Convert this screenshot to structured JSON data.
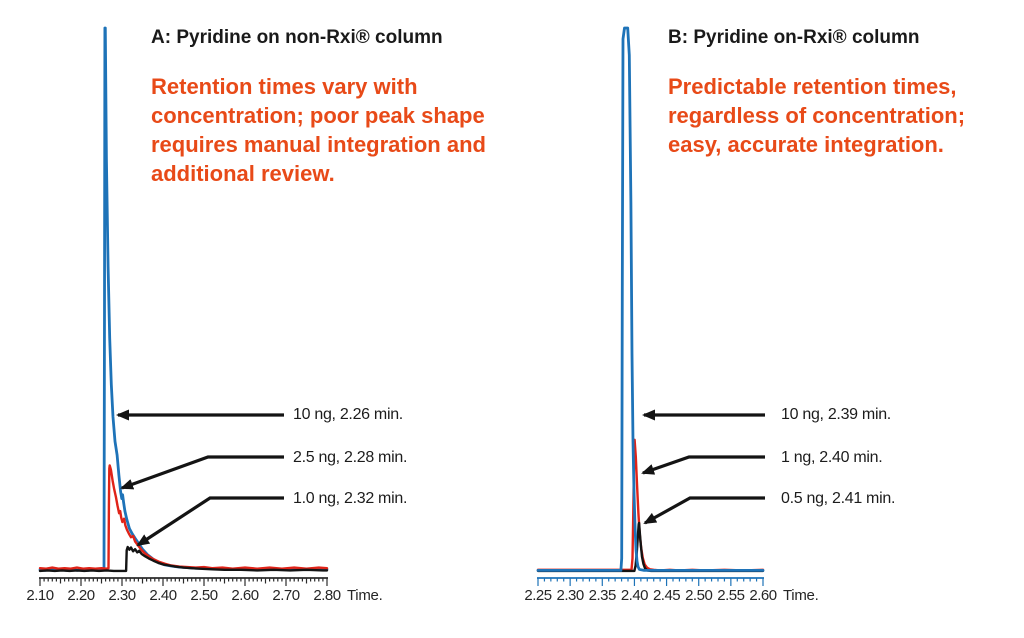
{
  "colors": {
    "blue": "#1e73b8",
    "red": "#e02318",
    "black": "#141414",
    "orange": "#e84a18",
    "axis": "#2b2b2b"
  },
  "chart_data": [
    {
      "type": "line",
      "panel": "A",
      "title": "A: Pyridine on non-Rxi® column",
      "note_lines": [
        "Retention times vary with",
        "concentration; poor peak shape",
        "requires manual integration and",
        "additional review."
      ],
      "xlabel": "Time.",
      "xlim": [
        2.1,
        2.8
      ],
      "ylim": [
        0,
        1000
      ],
      "x_major_step": 0.1,
      "x_minor_step": 0.01,
      "x_tick_labels": [
        "2.10",
        "2.20",
        "2.30",
        "2.40",
        "2.50",
        "2.60",
        "2.70",
        "2.80"
      ],
      "axis_color": "axis",
      "grid": false,
      "legend": false,
      "annotations": [
        {
          "text": "10 ng, 2.26 min.",
          "series": "10 ng",
          "retention_min": 2.26
        },
        {
          "text": "2.5 ng, 2.28 min.",
          "series": "2.5 ng",
          "retention_min": 2.28
        },
        {
          "text": "1.0 ng, 2.32 min.",
          "series": "1.0 ng",
          "retention_min": 2.32
        }
      ],
      "series": [
        {
          "name": "10 ng",
          "color": "blue",
          "retention_min": 2.26,
          "points": [
            [
              2.1,
              4
            ],
            [
              2.113,
              3
            ],
            [
              2.126,
              5
            ],
            [
              2.139,
              3
            ],
            [
              2.152,
              4
            ],
            [
              2.165,
              3
            ],
            [
              2.178,
              5
            ],
            [
              2.191,
              3
            ],
            [
              2.204,
              4
            ],
            [
              2.217,
              3
            ],
            [
              2.23,
              4
            ],
            [
              2.243,
              3
            ],
            [
              2.252,
              4
            ],
            [
              2.256,
              5
            ],
            [
              2.2572,
              480
            ],
            [
              2.2582,
              1000
            ],
            [
              2.2592,
              1000
            ],
            [
              2.262,
              760
            ],
            [
              2.266,
              560
            ],
            [
              2.27,
              430
            ],
            [
              2.274,
              345
            ],
            [
              2.278,
              285
            ],
            [
              2.283,
              240
            ],
            [
              2.288,
              215
            ],
            [
              2.2925,
              178
            ],
            [
              2.2965,
              148
            ],
            [
              2.2995,
              135
            ],
            [
              2.3015,
              142
            ],
            [
              2.304,
              128
            ],
            [
              2.307,
              112
            ],
            [
              2.312,
              96
            ],
            [
              2.318,
              80
            ],
            [
              2.325,
              70
            ],
            [
              2.332,
              62
            ],
            [
              2.34,
              53
            ],
            [
              2.35,
              42
            ],
            [
              2.362,
              32
            ],
            [
              2.375,
              24
            ],
            [
              2.39,
              17
            ],
            [
              2.405,
              13
            ],
            [
              2.42,
              11
            ],
            [
              2.44,
              9
            ],
            [
              2.46,
              8
            ],
            [
              2.48,
              7
            ],
            [
              2.5,
              7
            ],
            [
              2.525,
              6
            ],
            [
              2.55,
              6
            ],
            [
              2.575,
              5
            ],
            [
              2.6,
              6
            ],
            [
              2.63,
              5
            ],
            [
              2.66,
              6
            ],
            [
              2.69,
              5
            ],
            [
              2.72,
              6
            ],
            [
              2.75,
              5
            ],
            [
              2.78,
              6
            ],
            [
              2.8,
              5
            ]
          ]
        },
        {
          "name": "2.5 ng",
          "color": "red",
          "retention_min": 2.28,
          "points": [
            [
              2.1,
              7
            ],
            [
              2.115,
              6
            ],
            [
              2.13,
              8
            ],
            [
              2.145,
              6
            ],
            [
              2.16,
              7
            ],
            [
              2.175,
              6
            ],
            [
              2.19,
              8
            ],
            [
              2.205,
              6
            ],
            [
              2.22,
              7
            ],
            [
              2.235,
              6
            ],
            [
              2.25,
              7
            ],
            [
              2.262,
              6
            ],
            [
              2.267,
              7
            ],
            [
              2.268,
              120
            ],
            [
              2.269,
              190
            ],
            [
              2.27,
              196
            ],
            [
              2.273,
              188
            ],
            [
              2.277,
              168
            ],
            [
              2.281,
              152
            ],
            [
              2.285,
              138
            ],
            [
              2.289,
              122
            ],
            [
              2.293,
              108
            ],
            [
              2.2955,
              112
            ],
            [
              2.298,
              100
            ],
            [
              2.301,
              92
            ],
            [
              2.305,
              98
            ],
            [
              2.308,
              86
            ],
            [
              2.312,
              78
            ],
            [
              2.317,
              70
            ],
            [
              2.322,
              64
            ],
            [
              2.327,
              66
            ],
            [
              2.332,
              56
            ],
            [
              2.34,
              48
            ],
            [
              2.348,
              40
            ],
            [
              2.356,
              34
            ],
            [
              2.365,
              29
            ],
            [
              2.375,
              24
            ],
            [
              2.39,
              19
            ],
            [
              2.405,
              15
            ],
            [
              2.42,
              12
            ],
            [
              2.44,
              10
            ],
            [
              2.46,
              9
            ],
            [
              2.48,
              8
            ],
            [
              2.5,
              9
            ],
            [
              2.52,
              7
            ],
            [
              2.545,
              8
            ],
            [
              2.57,
              6
            ],
            [
              2.6,
              8
            ],
            [
              2.63,
              6
            ],
            [
              2.66,
              8
            ],
            [
              2.69,
              6
            ],
            [
              2.72,
              8
            ],
            [
              2.75,
              6
            ],
            [
              2.78,
              8
            ],
            [
              2.8,
              7
            ]
          ]
        },
        {
          "name": "1.0 ng",
          "color": "black",
          "retention_min": 2.32,
          "points": [
            [
              2.1,
              2
            ],
            [
              2.118,
              3
            ],
            [
              2.136,
              2
            ],
            [
              2.154,
              3
            ],
            [
              2.172,
              2
            ],
            [
              2.19,
              3
            ],
            [
              2.208,
              2
            ],
            [
              2.226,
              3
            ],
            [
              2.244,
              2
            ],
            [
              2.262,
              3
            ],
            [
              2.28,
              2
            ],
            [
              2.298,
              2
            ],
            [
              2.31,
              2
            ],
            [
              2.3115,
              40
            ],
            [
              2.314,
              46
            ],
            [
              2.318,
              41
            ],
            [
              2.322,
              45
            ],
            [
              2.327,
              38
            ],
            [
              2.332,
              42
            ],
            [
              2.337,
              36
            ],
            [
              2.342,
              39
            ],
            [
              2.348,
              33
            ],
            [
              2.356,
              29
            ],
            [
              2.365,
              25
            ],
            [
              2.376,
              21
            ],
            [
              2.388,
              17
            ],
            [
              2.4,
              14
            ],
            [
              2.415,
              12
            ],
            [
              2.43,
              10
            ],
            [
              2.45,
              8
            ],
            [
              2.47,
              7
            ],
            [
              2.49,
              6
            ],
            [
              2.52,
              5
            ],
            [
              2.55,
              4
            ],
            [
              2.59,
              4
            ],
            [
              2.63,
              3
            ],
            [
              2.67,
              4
            ],
            [
              2.71,
              3
            ],
            [
              2.75,
              4
            ],
            [
              2.79,
              3
            ],
            [
              2.8,
              3
            ]
          ]
        }
      ]
    },
    {
      "type": "line",
      "panel": "B",
      "title": "B: Pyridine on-Rxi® column",
      "note_lines": [
        "Predictable retention times,",
        "regardless of concentration;",
        "easy, accurate integration."
      ],
      "xlabel": "Time.",
      "xlim": [
        2.25,
        2.6
      ],
      "ylim": [
        0,
        1000
      ],
      "x_major_step": 0.05,
      "x_minor_step": 0.01,
      "x_tick_labels": [
        "2.25",
        "2.30",
        "2.35",
        "2.40",
        "2.45",
        "2.50",
        "2.55",
        "2.60"
      ],
      "axis_color": "blue",
      "grid": false,
      "legend": false,
      "annotations": [
        {
          "text": "10 ng, 2.39 min.",
          "series": "10 ng",
          "retention_min": 2.39
        },
        {
          "text": "1 ng, 2.40 min.",
          "series": "1 ng",
          "retention_min": 2.4
        },
        {
          "text": "0.5 ng, 2.41 min.",
          "series": "0.5 ng",
          "retention_min": 2.41
        }
      ],
      "series": [
        {
          "name": "10 ng",
          "color": "blue",
          "retention_min": 2.39,
          "points": [
            [
              2.25,
              3
            ],
            [
              2.265,
              3
            ],
            [
              2.28,
              3
            ],
            [
              2.295,
              3
            ],
            [
              2.31,
              3
            ],
            [
              2.325,
              3
            ],
            [
              2.34,
              3
            ],
            [
              2.355,
              3
            ],
            [
              2.37,
              3
            ],
            [
              2.379,
              3
            ],
            [
              2.3802,
              25
            ],
            [
              2.3812,
              520
            ],
            [
              2.3822,
              980
            ],
            [
              2.3845,
              1000
            ],
            [
              2.3895,
              1000
            ],
            [
              2.392,
              950
            ],
            [
              2.3945,
              680
            ],
            [
              2.3962,
              400
            ],
            [
              2.3978,
              240
            ],
            [
              2.3995,
              140
            ],
            [
              2.401,
              80
            ],
            [
              2.4025,
              42
            ],
            [
              2.404,
              20
            ],
            [
              2.4055,
              10
            ],
            [
              2.4075,
              5
            ],
            [
              2.41,
              4
            ],
            [
              2.415,
              3
            ],
            [
              2.425,
              3
            ],
            [
              2.44,
              3
            ],
            [
              2.46,
              3
            ],
            [
              2.48,
              3
            ],
            [
              2.5,
              3
            ],
            [
              2.525,
              3
            ],
            [
              2.55,
              3
            ],
            [
              2.575,
              3
            ],
            [
              2.6,
              3
            ]
          ]
        },
        {
          "name": "1 ng",
          "color": "red",
          "retention_min": 2.4,
          "points": [
            [
              2.25,
              4
            ],
            [
              2.28,
              4
            ],
            [
              2.31,
              4
            ],
            [
              2.34,
              4
            ],
            [
              2.37,
              4
            ],
            [
              2.39,
              4
            ],
            [
              2.3955,
              4
            ],
            [
              2.397,
              25
            ],
            [
              2.3982,
              110
            ],
            [
              2.3993,
              200
            ],
            [
              2.4003,
              243
            ],
            [
              2.4022,
              212
            ],
            [
              2.4042,
              158
            ],
            [
              2.4062,
              108
            ],
            [
              2.4082,
              70
            ],
            [
              2.4105,
              44
            ],
            [
              2.413,
              26
            ],
            [
              2.416,
              14
            ],
            [
              2.4195,
              8
            ],
            [
              2.424,
              5
            ],
            [
              2.43,
              4
            ],
            [
              2.44,
              3
            ],
            [
              2.455,
              4
            ],
            [
              2.47,
              3
            ],
            [
              2.49,
              4
            ],
            [
              2.51,
              3
            ],
            [
              2.54,
              4
            ],
            [
              2.57,
              3
            ],
            [
              2.6,
              4
            ]
          ]
        },
        {
          "name": "0.5 ng",
          "color": "black",
          "retention_min": 2.41,
          "points": [
            [
              2.25,
              2
            ],
            [
              2.29,
              2
            ],
            [
              2.33,
              2
            ],
            [
              2.37,
              2
            ],
            [
              2.396,
              2
            ],
            [
              2.4,
              2
            ],
            [
              2.4018,
              12
            ],
            [
              2.4035,
              34
            ],
            [
              2.4052,
              64
            ],
            [
              2.4066,
              88
            ],
            [
              2.4072,
              90
            ],
            [
              2.4085,
              70
            ],
            [
              2.41,
              48
            ],
            [
              2.4118,
              28
            ],
            [
              2.414,
              15
            ],
            [
              2.4165,
              7
            ],
            [
              2.42,
              3
            ],
            [
              2.426,
              2
            ],
            [
              2.44,
              2
            ],
            [
              2.46,
              2
            ],
            [
              2.48,
              2
            ],
            [
              2.5,
              2
            ],
            [
              2.53,
              2
            ],
            [
              2.56,
              2
            ],
            [
              2.6,
              2
            ]
          ]
        }
      ]
    }
  ]
}
